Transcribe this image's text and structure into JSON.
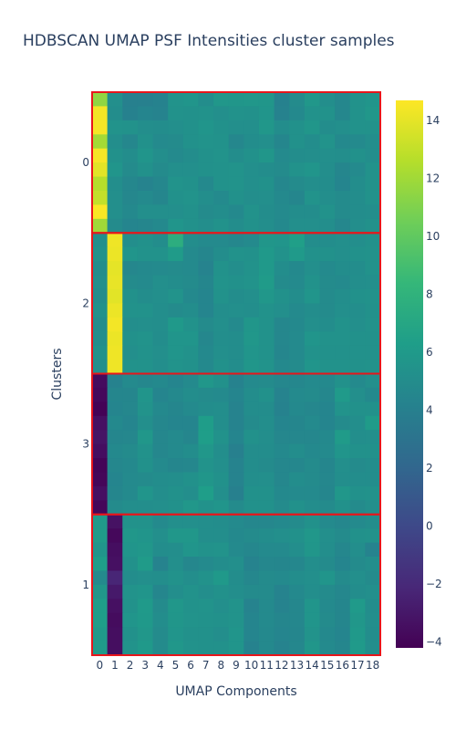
{
  "chart_data": {
    "type": "heatmap",
    "title": "HDBSCAN UMAP PSF Intensities cluster samples",
    "xlabel": "UMAP Components",
    "ylabel": "Clusters",
    "x_categories": [
      "0",
      "1",
      "2",
      "3",
      "4",
      "5",
      "6",
      "7",
      "8",
      "9",
      "10",
      "11",
      "12",
      "13",
      "14",
      "15",
      "16",
      "17",
      "18"
    ],
    "y_clusters": [
      "0",
      "2",
      "3",
      "1"
    ],
    "colorscale": "viridis",
    "zlim": [
      -4.2,
      14.7
    ],
    "colorbar_ticks": [
      14,
      12,
      10,
      8,
      6,
      4,
      2,
      0,
      -2,
      -4
    ],
    "cluster_box_color": "#e8161b",
    "groups": [
      {
        "cluster": "0",
        "rows": [
          [
            11.5,
            5.2,
            4.0,
            4.0,
            4.2,
            5.5,
            5.6,
            5.0,
            5.8,
            5.7,
            5.8,
            5.7,
            4.1,
            4.9,
            5.8,
            5.1,
            4.6,
            5.4,
            5.6
          ],
          [
            14.4,
            5.0,
            4.1,
            4.4,
            4.3,
            5.4,
            5.3,
            5.4,
            5.2,
            5.4,
            5.3,
            5.6,
            4.2,
            4.7,
            5.4,
            5.4,
            4.6,
            5.4,
            5.8
          ],
          [
            14.5,
            5.5,
            5.4,
            5.1,
            5.0,
            5.2,
            5.3,
            5.6,
            5.3,
            5.2,
            5.2,
            5.8,
            5.0,
            5.3,
            5.7,
            5.0,
            5.2,
            5.4,
            5.4
          ],
          [
            12.1,
            5.1,
            4.6,
            5.3,
            4.8,
            4.9,
            5.3,
            5.5,
            5.4,
            4.6,
            5.0,
            5.2,
            4.5,
            5.3,
            5.0,
            5.5,
            4.7,
            4.8,
            5.1
          ],
          [
            14.5,
            5.3,
            5.0,
            5.6,
            5.1,
            4.8,
            5.0,
            5.3,
            5.5,
            5.0,
            5.3,
            5.7,
            4.8,
            5.0,
            5.1,
            5.2,
            5.1,
            5.3,
            5.1
          ],
          [
            13.9,
            5.6,
            4.9,
            5.3,
            4.9,
            5.2,
            5.2,
            5.3,
            5.4,
            5.5,
            5.2,
            5.0,
            4.9,
            5.4,
            5.6,
            5.1,
            4.5,
            4.8,
            5.4
          ],
          [
            12.6,
            5.1,
            4.6,
            4.3,
            4.6,
            5.5,
            5.3,
            4.7,
            5.4,
            5.5,
            5.2,
            5.3,
            4.6,
            4.9,
            5.1,
            5.0,
            4.4,
            5.0,
            5.4
          ],
          [
            13.0,
            5.2,
            4.6,
            4.8,
            4.5,
            5.3,
            5.5,
            5.1,
            4.8,
            5.3,
            5.1,
            5.2,
            4.7,
            4.5,
            5.5,
            5.1,
            4.9,
            5.0,
            5.4
          ],
          [
            14.6,
            5.2,
            4.7,
            5.2,
            5.2,
            5.2,
            5.3,
            4.9,
            5.0,
            4.7,
            5.4,
            5.0,
            4.8,
            5.0,
            5.0,
            5.4,
            4.9,
            5.0,
            5.1
          ],
          [
            12.0,
            4.9,
            4.4,
            4.5,
            4.7,
            5.6,
            5.3,
            5.1,
            5.4,
            5.0,
            5.3,
            5.1,
            4.7,
            5.2,
            5.2,
            5.1,
            4.6,
            5.1,
            5.3
          ]
        ]
      },
      {
        "cluster": "2",
        "rows": [
          [
            5.2,
            14.3,
            5.1,
            5.3,
            5.0,
            7.6,
            5.0,
            4.8,
            4.8,
            4.6,
            4.8,
            5.7,
            5.6,
            6.4,
            5.0,
            5.0,
            5.2,
            5.1,
            5.3
          ],
          [
            5.4,
            14.2,
            5.6,
            5.4,
            5.4,
            6.1,
            4.8,
            4.5,
            5.0,
            5.4,
            5.3,
            5.9,
            5.4,
            6.0,
            5.3,
            5.3,
            5.2,
            5.3,
            5.4
          ],
          [
            5.0,
            14.0,
            4.6,
            4.7,
            4.8,
            4.9,
            4.8,
            4.3,
            5.4,
            5.1,
            5.4,
            5.9,
            5.0,
            4.7,
            5.2,
            4.8,
            5.0,
            5.0,
            5.4
          ],
          [
            5.2,
            14.1,
            4.9,
            4.8,
            5.2,
            5.0,
            4.9,
            4.5,
            5.5,
            5.3,
            5.5,
            6.1,
            4.9,
            4.8,
            5.4,
            4.9,
            4.8,
            5.1,
            5.2
          ],
          [
            5.0,
            13.9,
            5.3,
            5.0,
            5.2,
            5.5,
            4.7,
            4.4,
            5.4,
            5.0,
            5.2,
            5.8,
            5.3,
            5.0,
            5.6,
            4.9,
            5.1,
            5.3,
            5.4
          ],
          [
            5.3,
            14.2,
            5.4,
            5.4,
            5.1,
            4.9,
            5.0,
            4.4,
            5.1,
            5.2,
            5.1,
            5.4,
            5.2,
            4.8,
            5.0,
            4.9,
            5.2,
            5.1,
            5.3
          ],
          [
            5.0,
            14.4,
            5.1,
            5.2,
            5.1,
            5.9,
            5.4,
            4.9,
            5.2,
            4.8,
            5.7,
            5.4,
            4.6,
            4.7,
            5.2,
            5.0,
            5.4,
            5.2,
            5.4
          ],
          [
            5.1,
            14.2,
            5.3,
            5.5,
            5.0,
            5.6,
            5.6,
            4.6,
            5.1,
            5.0,
            5.8,
            5.4,
            4.6,
            4.8,
            5.6,
            5.4,
            5.4,
            5.3,
            5.3
          ],
          [
            5.4,
            14.3,
            5.2,
            5.4,
            5.2,
            5.6,
            5.4,
            4.7,
            5.2,
            5.0,
            5.6,
            5.4,
            4.5,
            4.8,
            5.4,
            5.3,
            5.3,
            5.3,
            5.3
          ],
          [
            5.2,
            14.3,
            5.4,
            5.4,
            5.1,
            5.5,
            5.3,
            4.7,
            5.3,
            5.0,
            5.7,
            5.5,
            4.7,
            4.9,
            5.6,
            5.4,
            5.4,
            5.3,
            5.4
          ]
        ]
      },
      {
        "cluster": "3",
        "rows": [
          [
            -3.6,
            4.2,
            4.8,
            4.6,
            4.7,
            4.4,
            4.8,
            5.8,
            5.3,
            4.2,
            4.8,
            4.9,
            4.6,
            4.6,
            4.8,
            4.7,
            5.3,
            4.8,
            5.2
          ],
          [
            -3.8,
            4.5,
            4.5,
            5.6,
            4.4,
            4.7,
            5.0,
            4.9,
            4.8,
            4.4,
            5.0,
            5.3,
            4.3,
            4.8,
            4.9,
            4.6,
            6.0,
            5.2,
            4.7
          ],
          [
            -4.1,
            4.4,
            4.6,
            5.5,
            4.7,
            4.5,
            4.8,
            5.0,
            5.1,
            4.3,
            5.0,
            5.0,
            4.2,
            4.7,
            4.6,
            4.4,
            5.5,
            5.3,
            5.3
          ],
          [
            -3.4,
            4.7,
            4.4,
            5.2,
            4.6,
            4.4,
            4.4,
            6.2,
            5.1,
            4.3,
            4.9,
            5.1,
            4.4,
            4.5,
            4.8,
            4.4,
            4.9,
            5.1,
            6.1
          ],
          [
            -3.2,
            4.5,
            4.6,
            5.8,
            4.6,
            4.8,
            4.5,
            6.3,
            5.4,
            4.4,
            5.3,
            5.1,
            4.6,
            4.6,
            4.6,
            4.7,
            6.1,
            5.1,
            5.2
          ],
          [
            -3.5,
            4.7,
            4.9,
            5.4,
            4.6,
            4.8,
            5.0,
            5.8,
            5.1,
            4.0,
            5.0,
            5.0,
            4.7,
            5.0,
            4.7,
            4.8,
            5.6,
            5.3,
            5.3
          ],
          [
            -4.0,
            4.6,
            4.7,
            5.3,
            4.8,
            4.5,
            4.6,
            5.5,
            5.2,
            4.3,
            5.0,
            4.9,
            4.6,
            4.6,
            4.9,
            4.5,
            5.2,
            4.9,
            5.0
          ],
          [
            -3.9,
            4.4,
            4.8,
            4.9,
            5.0,
            5.1,
            5.3,
            5.7,
            5.3,
            4.3,
            5.1,
            5.2,
            4.6,
            5.0,
            4.9,
            4.6,
            5.1,
            5.0,
            5.0
          ],
          [
            -3.4,
            4.5,
            4.8,
            5.6,
            5.1,
            5.3,
            5.1,
            6.3,
            5.2,
            4.0,
            5.3,
            5.3,
            4.7,
            4.8,
            4.8,
            4.5,
            5.8,
            5.3,
            5.4
          ],
          [
            -3.9,
            4.9,
            5.1,
            5.1,
            5.2,
            5.3,
            5.8,
            5.4,
            5.6,
            4.9,
            5.3,
            5.3,
            4.9,
            5.3,
            5.0,
            4.9,
            5.3,
            4.9,
            5.2
          ]
        ]
      },
      {
        "cluster": "1",
        "rows": [
          [
            6.0,
            -3.3,
            5.4,
            5.4,
            4.8,
            5.2,
            5.2,
            5.1,
            5.0,
            4.8,
            4.6,
            4.6,
            4.7,
            4.9,
            5.3,
            4.8,
            4.6,
            4.8,
            5.0
          ],
          [
            6.1,
            -3.8,
            5.8,
            5.6,
            5.2,
            5.8,
            5.8,
            5.1,
            5.1,
            4.7,
            4.9,
            5.0,
            5.2,
            5.3,
            5.8,
            5.2,
            4.9,
            5.3,
            5.4
          ],
          [
            5.6,
            -3.5,
            5.6,
            5.8,
            5.0,
            5.1,
            5.6,
            5.4,
            5.5,
            4.8,
            4.6,
            4.8,
            4.8,
            5.1,
            5.7,
            5.1,
            4.6,
            5.1,
            4.3
          ],
          [
            6.2,
            -3.4,
            5.3,
            6.1,
            4.3,
            5.2,
            4.6,
            4.8,
            5.0,
            5.2,
            4.3,
            4.6,
            4.5,
            4.6,
            5.1,
            4.9,
            4.4,
            4.9,
            5.1
          ],
          [
            4.8,
            -2.2,
            5.0,
            5.2,
            5.1,
            5.4,
            5.1,
            5.4,
            5.9,
            5.0,
            4.6,
            4.9,
            4.8,
            5.0,
            5.2,
            5.6,
            4.9,
            5.2,
            4.9
          ],
          [
            5.7,
            -2.9,
            5.5,
            5.6,
            4.5,
            5.1,
            5.4,
            5.1,
            5.3,
            5.1,
            4.9,
            4.9,
            4.3,
            4.7,
            5.1,
            4.9,
            4.6,
            5.0,
            5.2
          ],
          [
            6.2,
            -3.4,
            5.4,
            6.0,
            4.9,
            5.8,
            5.4,
            5.5,
            5.2,
            5.5,
            4.3,
            4.8,
            4.3,
            4.6,
            5.6,
            4.8,
            4.5,
            6.0,
            5.0
          ],
          [
            6.2,
            -3.6,
            5.6,
            5.9,
            5.0,
            5.7,
            5.5,
            5.4,
            5.3,
            5.5,
            4.4,
            4.8,
            4.5,
            4.6,
            5.6,
            4.9,
            4.5,
            5.8,
            5.1
          ],
          [
            5.9,
            -3.5,
            5.3,
            5.8,
            4.9,
            5.6,
            5.3,
            5.3,
            5.1,
            5.6,
            4.4,
            4.7,
            4.4,
            4.5,
            5.5,
            4.7,
            4.4,
            5.9,
            5.0
          ],
          [
            6.0,
            -3.5,
            5.5,
            5.9,
            4.9,
            5.8,
            5.4,
            5.3,
            5.3,
            5.6,
            4.2,
            4.7,
            4.3,
            4.6,
            5.7,
            4.8,
            4.5,
            6.0,
            5.1
          ]
        ]
      }
    ]
  }
}
